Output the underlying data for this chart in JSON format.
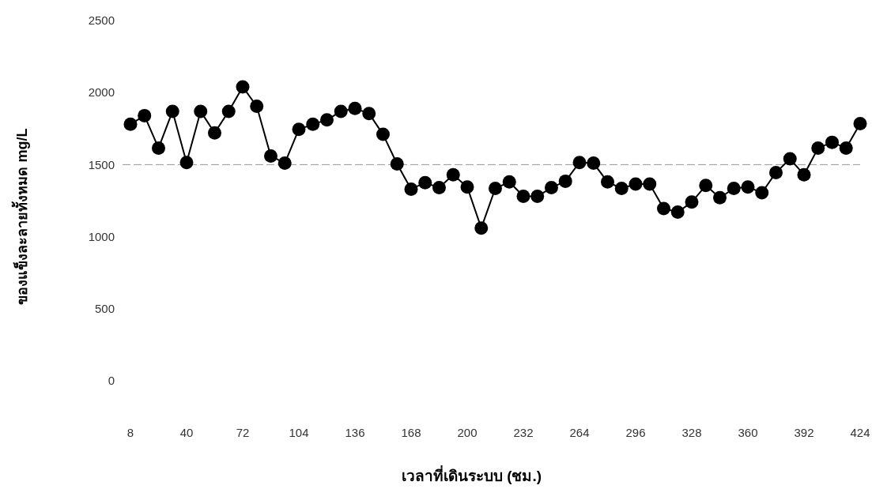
{
  "chart_data": {
    "type": "line",
    "xlabel": "เวลาที่เดินระบบ (ชม.)",
    "ylabel": "ของแข็งละลายทั้งหมด mg/L",
    "x": [
      8,
      16,
      24,
      32,
      40,
      48,
      56,
      64,
      72,
      80,
      88,
      96,
      104,
      112,
      120,
      128,
      136,
      144,
      152,
      160,
      168,
      176,
      184,
      192,
      200,
      208,
      216,
      224,
      232,
      240,
      248,
      256,
      264,
      272,
      280,
      288,
      296,
      304,
      312,
      320,
      328,
      336,
      344,
      352,
      360,
      368,
      376,
      384,
      392,
      400,
      408,
      416,
      424
    ],
    "series": [
      {
        "color": "#000000",
        "values": [
          1780,
          1840,
          1615,
          1870,
          1515,
          1870,
          1720,
          1870,
          2040,
          1905,
          1560,
          1510,
          1745,
          1780,
          1810,
          1870,
          1890,
          1855,
          1710,
          1505,
          1330,
          1375,
          1340,
          1430,
          1345,
          1060,
          1335,
          1380,
          1280,
          1280,
          1340,
          1385,
          1515,
          1510,
          1380,
          1335,
          1365,
          1365,
          1195,
          1170,
          1240,
          1355,
          1270,
          1335,
          1345,
          1305,
          1445,
          1540,
          1430,
          1615,
          1655,
          1615,
          1785
        ]
      }
    ],
    "xlim": [
      8,
      424
    ],
    "xticks": [
      8,
      40,
      72,
      104,
      136,
      168,
      200,
      232,
      264,
      296,
      328,
      360,
      392,
      424
    ],
    "ylim": [
      0,
      2500
    ],
    "yticks": [
      0,
      500,
      1000,
      1500,
      2000,
      2500
    ],
    "ref_lines": [
      {
        "axis": "y",
        "value": 1500,
        "color": "#999999",
        "line_style": "dashed"
      }
    ],
    "marker": "circle",
    "line_style": "solid",
    "grid": false
  }
}
